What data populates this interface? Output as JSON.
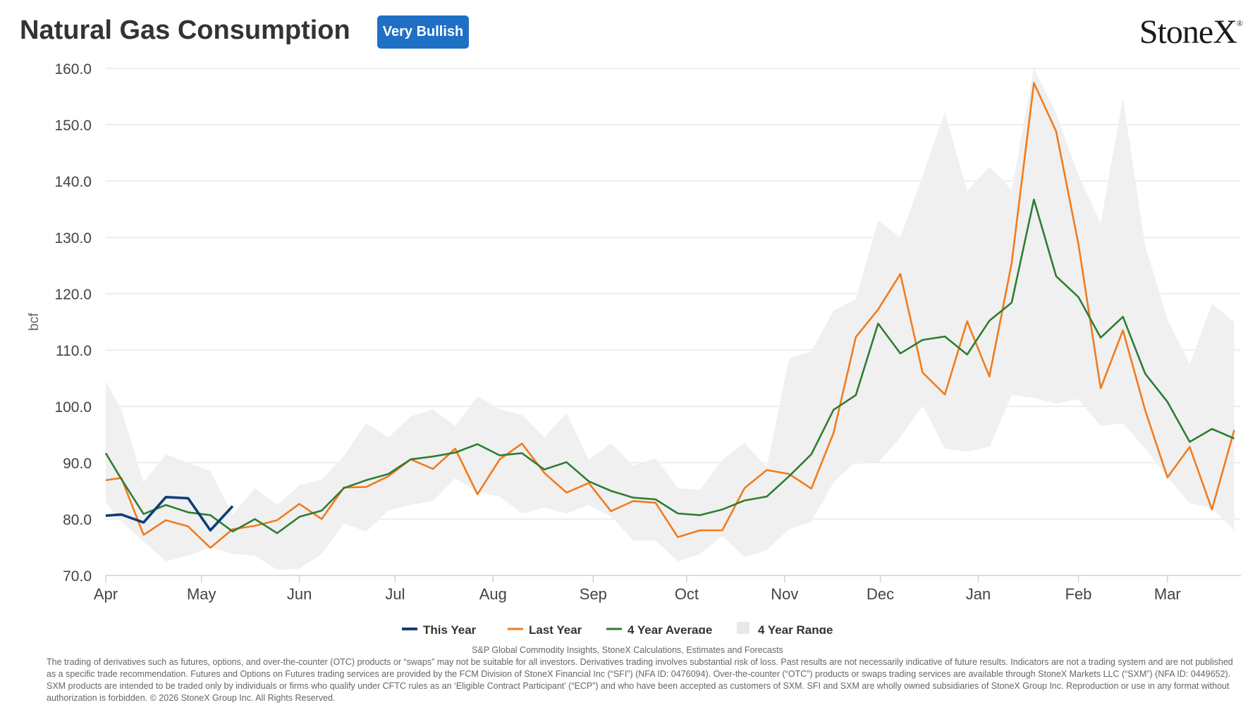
{
  "header": {
    "title": "Natural Gas Consumption",
    "badge": "Very Bullish",
    "badge_color": "#1f6fc5",
    "logo": "StoneX",
    "logo_mark": "®"
  },
  "footer": {
    "source": "S&P Global Commodity Insights, StoneX Calculations, Estimates and Forecasts",
    "disclaimer": "The trading of derivatives such as futures, options, and over-the-counter (OTC) products or “swaps” may not be suitable for all investors. Derivatives trading involves substantial risk of loss. Past results are not necessarily indicative of future results. Indicators are not a trading system and are not published as a specific trade recommendation. Futures and Options on Futures trading services are provided by the FCM Division of StoneX Financial Inc (“SFI”) (NFA ID: 0476094). Over-the-counter (“OTC”) products or swaps trading services are available through StoneX Markets LLC (“SXM”) (NFA ID: 0449652). SXM products are intended to be traded only by individuals or firms who qualify under CFTC rules as an ‘Eligible Contract Participant’ (“ECP”) and who have been accepted as customers of SXM. SFI and SXM are wholly owned subsidiaries of StoneX Group Inc. Reproduction or use in any format without authorization is forbidden. © 2026 StoneX Group Inc. All Rights Reserved."
  },
  "chart_data": {
    "type": "line",
    "ylabel": "bcf",
    "ylim": [
      70,
      160
    ],
    "yticks": [
      "70.0",
      "80.0",
      "90.0",
      "100.0",
      "110.0",
      "120.0",
      "130.0",
      "140.0",
      "150.0",
      "160.0"
    ],
    "xlim": [
      0,
      51
    ],
    "xticks": [
      {
        "label": "Apr",
        "x": 0
      },
      {
        "label": "May",
        "x": 4.3
      },
      {
        "label": "Jun",
        "x": 8.7
      },
      {
        "label": "Jul",
        "x": 13
      },
      {
        "label": "Aug",
        "x": 17.4
      },
      {
        "label": "Sep",
        "x": 21.9
      },
      {
        "label": "Oct",
        "x": 26.1
      },
      {
        "label": "Nov",
        "x": 30.5
      },
      {
        "label": "Dec",
        "x": 34.8
      },
      {
        "label": "Jan",
        "x": 39.2
      },
      {
        "label": "Feb",
        "x": 43.7
      },
      {
        "label": "Mar",
        "x": 47.7
      }
    ],
    "grid": true,
    "legend_position": "bottom-center",
    "series": [
      {
        "name": "This Year",
        "color": "#0b3e78",
        "x": [
          0,
          0.7,
          1.7,
          2.7,
          3.7,
          4.7,
          5.7
        ],
        "values": [
          80.6,
          80.8,
          79.4,
          83.9,
          83.7,
          78.0,
          82.3
        ]
      },
      {
        "name": "Last Year",
        "color": "#f07c1f",
        "x": [
          0,
          0.7,
          1.7,
          2.7,
          3.7,
          4.7,
          5.7,
          6.7,
          7.7,
          8.7,
          9.7,
          10.7,
          11.7,
          12.7,
          13.7,
          14.7,
          15.7,
          16.7,
          17.7,
          18.7,
          19.7,
          20.7,
          21.7,
          22.7,
          23.7,
          24.7,
          25.7,
          26.7,
          27.7,
          28.7,
          29.7,
          30.7,
          31.7,
          32.7,
          33.7,
          34.7,
          35.7,
          36.7,
          37.7,
          38.7,
          39.7,
          40.7,
          41.7,
          42.7,
          43.7,
          44.7,
          45.7,
          46.7,
          47.7,
          48.7,
          49.7,
          50.7
        ],
        "values": [
          86.9,
          87.3,
          77.2,
          79.8,
          78.7,
          74.9,
          78.2,
          78.8,
          79.8,
          82.7,
          80.0,
          85.6,
          85.7,
          87.6,
          90.6,
          88.9,
          92.5,
          84.4,
          90.6,
          93.4,
          88.2,
          84.7,
          86.4,
          81.4,
          83.2,
          82.9,
          76.8,
          78.0,
          78.0,
          85.5,
          88.7,
          88.0,
          85.4,
          95.3,
          112.3,
          117.2,
          123.5,
          106.0,
          102.1,
          115.1,
          105.3,
          125.4,
          157.4,
          148.8,
          128.8,
          103.2,
          113.5,
          99.3,
          87.4,
          92.8,
          81.7,
          95.8
        ]
      },
      {
        "name": "4 Year Average",
        "color": "#2e7d32",
        "x": [
          0,
          0.7,
          1.7,
          2.7,
          3.7,
          4.7,
          5.7,
          6.7,
          7.7,
          8.7,
          9.7,
          10.7,
          11.7,
          12.7,
          13.7,
          14.7,
          15.7,
          16.7,
          17.7,
          18.7,
          19.7,
          20.7,
          21.7,
          22.7,
          23.7,
          24.7,
          25.7,
          26.7,
          27.7,
          28.7,
          29.7,
          30.7,
          31.7,
          32.7,
          33.7,
          34.7,
          35.7,
          36.7,
          37.7,
          38.7,
          39.7,
          40.7,
          41.7,
          42.7,
          43.7,
          44.7,
          45.7,
          46.7,
          47.7,
          48.7,
          49.7,
          50.7
        ],
        "values": [
          91.7,
          87.1,
          80.9,
          82.5,
          81.2,
          80.7,
          77.8,
          80.0,
          77.5,
          80.4,
          81.5,
          85.5,
          86.9,
          88.0,
          90.6,
          91.1,
          91.8,
          93.3,
          91.3,
          91.7,
          88.8,
          90.1,
          86.7,
          85.0,
          83.8,
          83.5,
          81.0,
          80.7,
          81.7,
          83.3,
          84.0,
          87.6,
          91.5,
          99.4,
          102.0,
          114.7,
          109.4,
          111.8,
          112.4,
          109.2,
          115.2,
          118.4,
          136.7,
          123.1,
          119.4,
          112.2,
          115.9,
          105.8,
          100.8,
          93.7,
          96.0,
          94.3
        ]
      },
      {
        "name": "4 Year Range",
        "color": "#f0f0f0",
        "x": [
          0,
          0.7,
          1.7,
          2.7,
          3.7,
          4.7,
          5.7,
          6.7,
          7.7,
          8.7,
          9.7,
          10.7,
          11.7,
          12.7,
          13.7,
          14.7,
          15.7,
          16.7,
          17.7,
          18.7,
          19.7,
          20.7,
          21.7,
          22.7,
          23.7,
          24.7,
          25.7,
          26.7,
          27.7,
          28.7,
          29.7,
          30.7,
          31.7,
          32.7,
          33.7,
          34.7,
          35.7,
          36.7,
          37.7,
          38.7,
          39.7,
          40.7,
          41.7,
          42.7,
          43.7,
          44.7,
          45.7,
          46.7,
          47.7,
          48.7,
          49.7,
          50.7
        ],
        "high": [
          104.5,
          99.5,
          86.5,
          91.5,
          90.0,
          88.5,
          80.8,
          85.5,
          82.5,
          86.0,
          87.0,
          91.2,
          97.0,
          94.5,
          98.2,
          99.5,
          96.5,
          101.8,
          99.5,
          98.5,
          94.5,
          98.8,
          90.5,
          93.5,
          89.5,
          90.8,
          85.5,
          85.2,
          90.5,
          93.5,
          89.2,
          108.5,
          109.8,
          117.0,
          119.0,
          133.0,
          130.0,
          141.0,
          152.2,
          138.2,
          142.5,
          138.5,
          160.0,
          152.0,
          141.0,
          132.5,
          154.8,
          128.5,
          115.5,
          107.5,
          118.2,
          115.0
        ],
        "low": [
          83.0,
          79.5,
          76.0,
          72.5,
          73.5,
          75.0,
          73.8,
          73.5,
          71.0,
          71.2,
          73.8,
          79.2,
          77.8,
          81.5,
          82.5,
          83.2,
          87.2,
          84.8,
          84.0,
          81.0,
          82.0,
          81.0,
          82.5,
          80.5,
          76.2,
          76.2,
          72.5,
          73.8,
          77.0,
          73.2,
          74.5,
          78.2,
          79.5,
          86.5,
          90.3,
          90.0,
          94.5,
          100.2,
          92.5,
          92.0,
          92.8,
          102.0,
          101.5,
          100.5,
          101.3,
          96.5,
          97.0,
          92.5,
          87.5,
          82.8,
          82.0,
          78.0
        ]
      }
    ]
  }
}
